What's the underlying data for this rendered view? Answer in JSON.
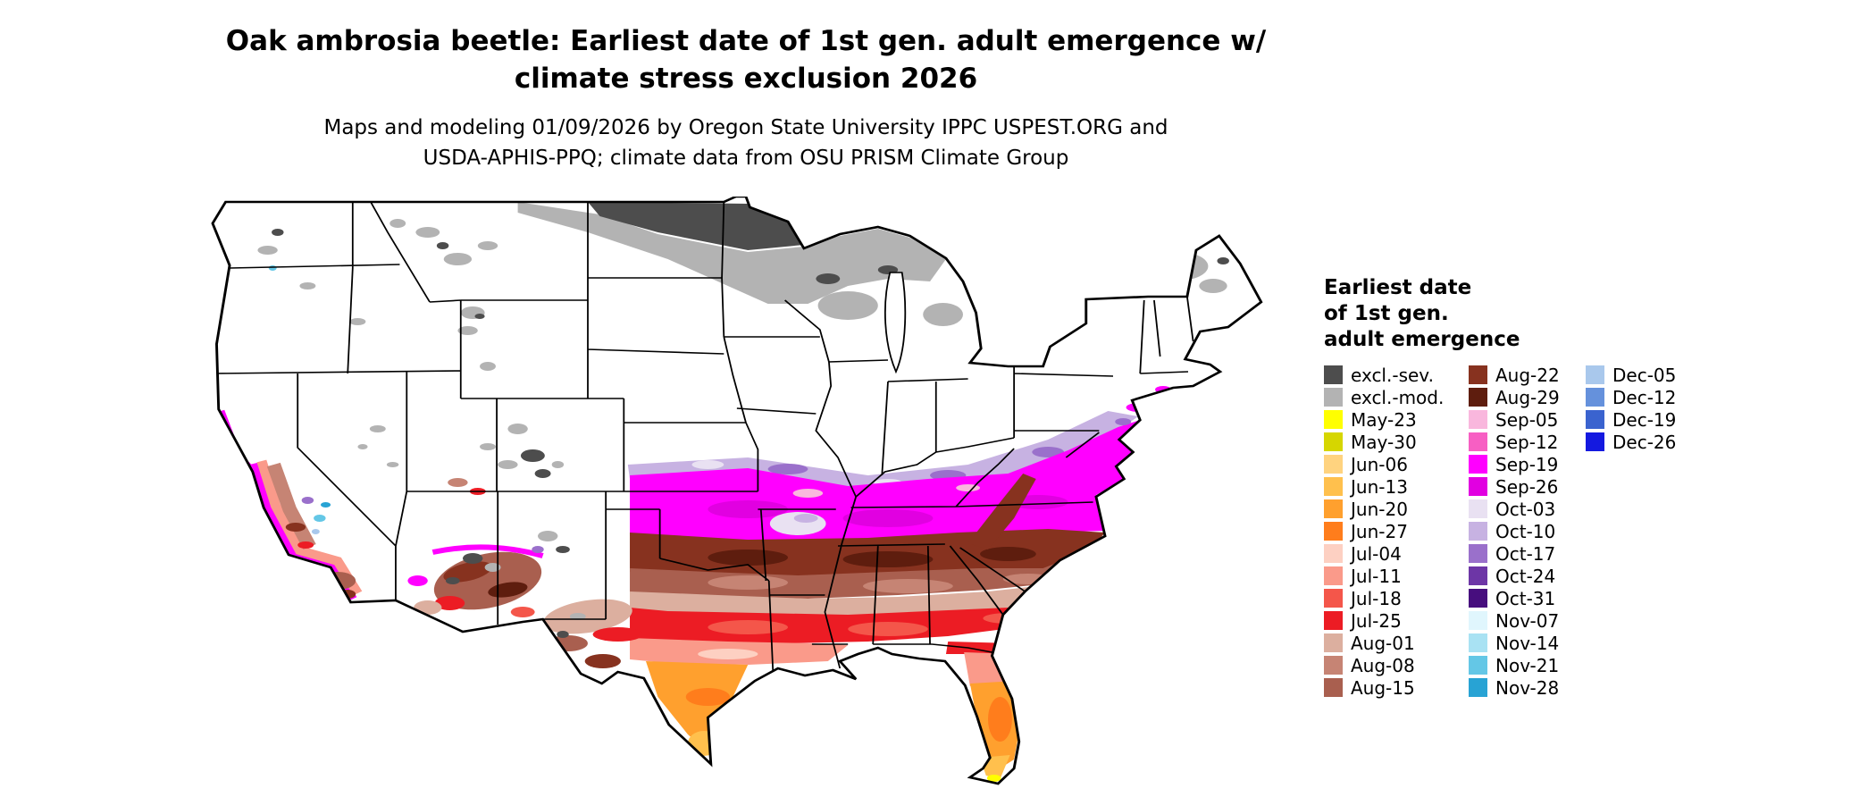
{
  "header": {
    "title_line1": "Oak ambrosia beetle: Earliest date of 1st gen. adult emergence w/",
    "title_line2": "climate stress exclusion 2026",
    "subtitle_line1": "Maps and modeling 01/09/2026 by Oregon State University IPPC USPEST.ORG and",
    "subtitle_line2": "USDA-APHIS-PPQ; climate data from OSU PRISM Climate Group"
  },
  "legend": {
    "title_lines": [
      "Earliest date",
      "of 1st gen.",
      "adult emergence"
    ],
    "columns": [
      {
        "entries": [
          {
            "label": "excl.-sev.",
            "color": "#4d4d4d"
          },
          {
            "label": "excl.-mod.",
            "color": "#b3b3b3"
          },
          {
            "label": "May-23",
            "color": "#ffff00"
          },
          {
            "label": "May-30",
            "color": "#d6d600"
          },
          {
            "label": "Jun-06",
            "color": "#ffd37f"
          },
          {
            "label": "Jun-13",
            "color": "#ffc04d"
          },
          {
            "label": "Jun-20",
            "color": "#ffa02e"
          },
          {
            "label": "Jun-27",
            "color": "#ff7d1c"
          },
          {
            "label": "Jul-04",
            "color": "#fdd0c2"
          },
          {
            "label": "Jul-11",
            "color": "#fa9a8a"
          },
          {
            "label": "Jul-18",
            "color": "#f4564a"
          },
          {
            "label": "Jul-25",
            "color": "#ec1c24"
          },
          {
            "label": "Aug-01",
            "color": "#dcaf9f"
          },
          {
            "label": "Aug-08",
            "color": "#c68474"
          },
          {
            "label": "Aug-15",
            "color": "#a95f4f"
          }
        ]
      },
      {
        "entries": [
          {
            "label": "Aug-22",
            "color": "#87321f"
          },
          {
            "label": "Aug-29",
            "color": "#5e1d0e"
          },
          {
            "label": "Sep-05",
            "color": "#f9b7dd"
          },
          {
            "label": "Sep-12",
            "color": "#f75fc3"
          },
          {
            "label": "Sep-19",
            "color": "#ff00ff"
          },
          {
            "label": "Sep-26",
            "color": "#e100e1"
          },
          {
            "label": "Oct-03",
            "color": "#e9e1f2"
          },
          {
            "label": "Oct-10",
            "color": "#c7b2e2"
          },
          {
            "label": "Oct-17",
            "color": "#9a70cb"
          },
          {
            "label": "Oct-24",
            "color": "#6d36a6"
          },
          {
            "label": "Oct-31",
            "color": "#470e7e"
          },
          {
            "label": "Nov-07",
            "color": "#e0f6fd"
          },
          {
            "label": "Nov-14",
            "color": "#a9e2f3"
          },
          {
            "label": "Nov-21",
            "color": "#64c7e6"
          },
          {
            "label": "Nov-28",
            "color": "#28a3d4"
          }
        ]
      },
      {
        "entries": [
          {
            "label": "Dec-05",
            "color": "#a9c8ec"
          },
          {
            "label": "Dec-12",
            "color": "#6591dc"
          },
          {
            "label": "Dec-19",
            "color": "#3a63cf"
          },
          {
            "label": "Dec-26",
            "color": "#1419e0"
          }
        ]
      }
    ]
  },
  "map": {
    "region": "Continental United States"
  }
}
